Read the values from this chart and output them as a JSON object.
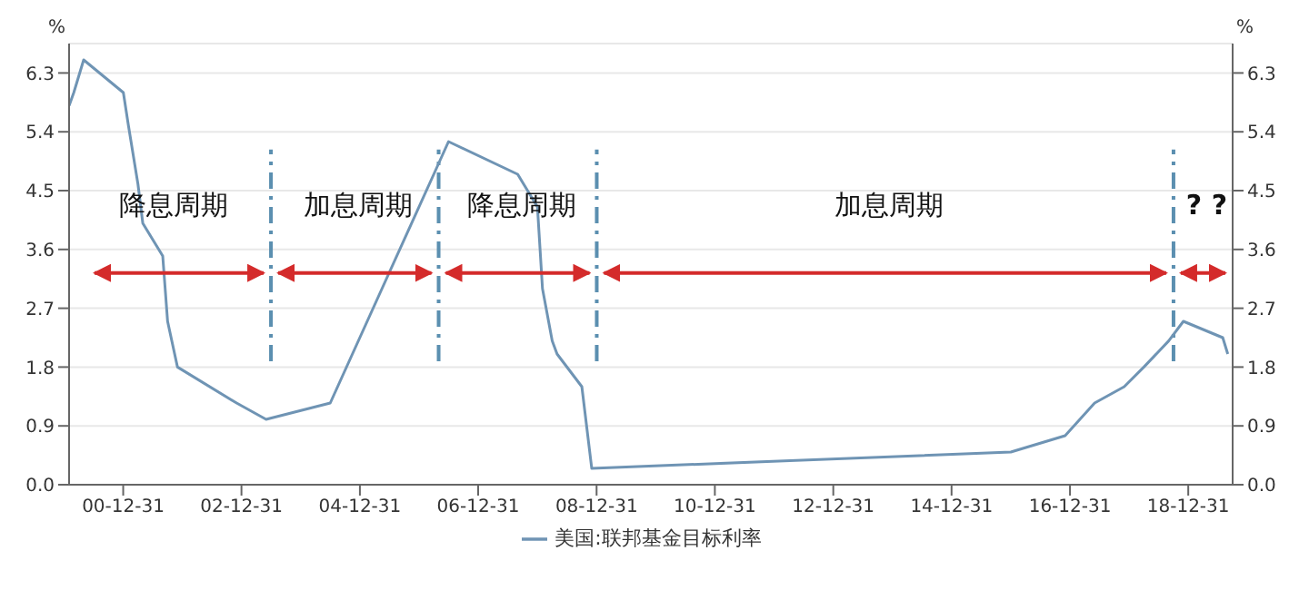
{
  "chart_data": {
    "type": "line",
    "x": [
      "2000-02",
      "2000-03",
      "2000-05",
      "2001-01",
      "2001-02",
      "2001-04",
      "2001-05",
      "2001-09",
      "2001-10",
      "2001-12",
      "2002-12",
      "2003-06",
      "2004-07",
      "2005-07",
      "2006-04",
      "2006-07",
      "2007-09",
      "2008-01",
      "2008-02",
      "2008-04",
      "2008-05",
      "2008-10",
      "2008-12",
      "2016-01",
      "2016-12",
      "2017-06",
      "2017-12",
      "2018-04",
      "2018-09",
      "2018-12",
      "2019-08",
      "2019-09"
    ],
    "series": [
      {
        "name": "美国:联邦基金目标利率",
        "color": "#6f94b4",
        "values": [
          5.8,
          6.0,
          6.5,
          6.0,
          5.5,
          4.6,
          4.0,
          3.5,
          2.5,
          1.8,
          1.25,
          1.0,
          1.25,
          3.25,
          4.75,
          5.25,
          4.75,
          4.25,
          3.0,
          2.2,
          2.0,
          1.5,
          0.25,
          0.5,
          0.75,
          1.25,
          1.5,
          1.8,
          2.2,
          2.5,
          2.25,
          2.0
        ]
      }
    ],
    "xlim": [
      "2000-02",
      "2019-10"
    ],
    "xticks": [
      {
        "value": "2000-12-31",
        "label": "00-12-31"
      },
      {
        "value": "2002-12-31",
        "label": "02-12-31"
      },
      {
        "value": "2004-12-31",
        "label": "04-12-31"
      },
      {
        "value": "2006-12-31",
        "label": "06-12-31"
      },
      {
        "value": "2008-12-31",
        "label": "08-12-31"
      },
      {
        "value": "2010-12-31",
        "label": "10-12-31"
      },
      {
        "value": "2012-12-31",
        "label": "12-12-31"
      },
      {
        "value": "2014-12-31",
        "label": "14-12-31"
      },
      {
        "value": "2016-12-31",
        "label": "16-12-31"
      },
      {
        "value": "2018-12-31",
        "label": "18-12-31"
      }
    ],
    "ylim": [
      0,
      6.75
    ],
    "yticks": [
      {
        "value": 0,
        "label": "0.0"
      },
      {
        "value": 0.9,
        "label": "0.9"
      },
      {
        "value": 1.8,
        "label": "1.8"
      },
      {
        "value": 2.7,
        "label": "2.7"
      },
      {
        "value": 3.6,
        "label": "3.6"
      },
      {
        "value": 4.5,
        "label": "4.5"
      },
      {
        "value": 5.4,
        "label": "5.4"
      },
      {
        "value": 6.3,
        "label": "6.3"
      }
    ],
    "y2lim": [
      0,
      6.75
    ],
    "y2ticks": [
      {
        "value": 0,
        "label": "0.0"
      },
      {
        "value": 0.9,
        "label": "0.9"
      },
      {
        "value": 1.8,
        "label": "1.8"
      },
      {
        "value": 2.7,
        "label": "2.7"
      },
      {
        "value": 3.6,
        "label": "3.6"
      },
      {
        "value": 4.5,
        "label": "4.5"
      },
      {
        "value": 5.4,
        "label": "5.4"
      },
      {
        "value": 6.3,
        "label": "6.3"
      }
    ],
    "ylabel": "%",
    "y2label": "%",
    "ref_lines": [
      {
        "axis": "x",
        "value": "2003-07",
        "color": "#5b8fb0",
        "line_style": "dashdot"
      },
      {
        "axis": "x",
        "value": "2006-05",
        "color": "#5b8fb0",
        "line_style": "dashdot"
      },
      {
        "axis": "x",
        "value": "2009-01",
        "color": "#5b8fb0",
        "line_style": "dashdot"
      },
      {
        "axis": "x",
        "value": "2018-10",
        "color": "#5b8fb0",
        "line_style": "dashdot"
      }
    ],
    "annotations": [
      "降息周期",
      "加息周期",
      "降息周期",
      "加息周期",
      "? ?"
    ],
    "grid": "y",
    "legend": "bottom",
    "marker": "none",
    "line_style": "solid"
  }
}
